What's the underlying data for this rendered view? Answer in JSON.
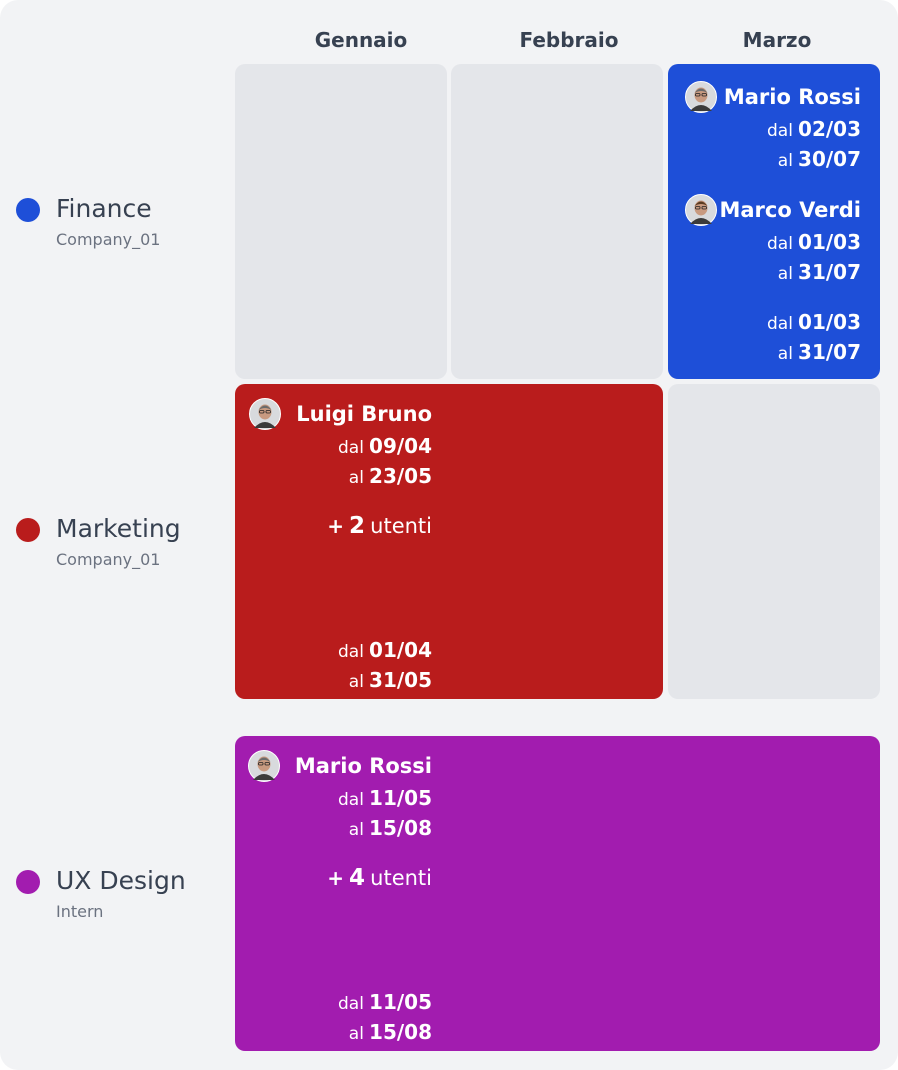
{
  "header": {
    "months": [
      "Gennaio",
      "Febbraio",
      "Marzo"
    ]
  },
  "groups": [
    {
      "name": "Finance",
      "subtitle": "Company_01",
      "entries": [
        {
          "name": "Mario Rossi",
          "from_prefix": "dal",
          "from": "02/03",
          "to_prefix": "al",
          "to": "30/07"
        },
        {
          "name": "Marco Verdi",
          "from_prefix": "dal",
          "from": "01/03",
          "to_prefix": "al",
          "to": "31/07"
        },
        {
          "from_prefix": "dal",
          "from": "01/03",
          "to_prefix": "al",
          "to": "31/07"
        }
      ]
    },
    {
      "name": "Marketing",
      "subtitle": "Company_01",
      "entries": [
        {
          "name": "Luigi Bruno",
          "from_prefix": "dal",
          "from": "09/04",
          "to_prefix": "al",
          "to": "23/05"
        },
        {
          "from_prefix": "dal",
          "from": "01/04",
          "to_prefix": "al",
          "to": "31/05"
        }
      ],
      "more": {
        "prefix": "+",
        "count": 2,
        "suffix": "utenti"
      }
    },
    {
      "name": "UX Design",
      "subtitle": "Intern",
      "entries": [
        {
          "name": "Mario Rossi",
          "from_prefix": "dal",
          "from": "11/05",
          "to_prefix": "al",
          "to": "15/08"
        },
        {
          "from_prefix": "dal",
          "from": "11/05",
          "to_prefix": "al",
          "to": "15/08"
        }
      ],
      "more": {
        "prefix": "+",
        "count": 4,
        "suffix": "utenti"
      }
    }
  ]
}
